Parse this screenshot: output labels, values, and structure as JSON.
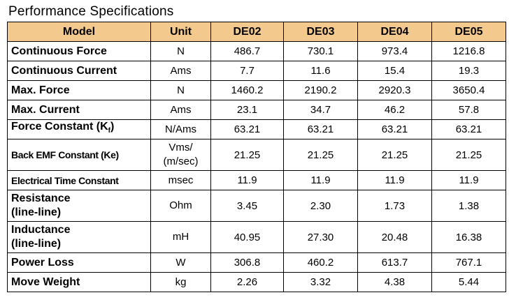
{
  "title": "Performance Specifications",
  "columns": [
    "Model",
    "Unit",
    "DE02",
    "DE03",
    "DE04",
    "DE05"
  ],
  "rows": [
    {
      "param": "Continuous Force",
      "unit": "N",
      "values": [
        "486.7",
        "730.1",
        "973.4",
        "1216.8"
      ]
    },
    {
      "param": "Continuous Current",
      "unit": "Ams",
      "values": [
        "7.7",
        "11.6",
        "15.4",
        "19.3"
      ]
    },
    {
      "param": "Max. Force",
      "unit": "N",
      "values": [
        "1460.2",
        "2190.2",
        "2920.3",
        "3650.4"
      ]
    },
    {
      "param": "Max. Current",
      "unit": "Ams",
      "values": [
        "23.1",
        "34.7",
        "46.2",
        "57.8"
      ]
    },
    {
      "param": "Force Constant (K",
      "param_sub": "f",
      "param_end": ")",
      "unit": "N/Ams",
      "values": [
        "63.21",
        "63.21",
        "63.21",
        "63.21"
      ]
    },
    {
      "param": "Back EMF Constant (Ke)",
      "unit_line1": "Vms/",
      "unit_line2": "(m/sec)",
      "values": [
        "21.25",
        "21.25",
        "21.25",
        "21.25"
      ]
    },
    {
      "param": "Electrical Time Constant",
      "unit": "msec",
      "values": [
        "11.9",
        "11.9",
        "11.9",
        "11.9"
      ]
    },
    {
      "param_line1": "Resistance",
      "param_line2": "(line-line)",
      "unit": "Ohm",
      "values": [
        "3.45",
        "2.30",
        "1.73",
        "1.38"
      ]
    },
    {
      "param_line1": "Inductance",
      "param_line2": "(line-line)",
      "unit": "mH",
      "values": [
        "40.95",
        "27.30",
        "20.48",
        "16.38"
      ]
    },
    {
      "param": "Power Loss",
      "unit": "W",
      "values": [
        "306.8",
        "460.2",
        "613.7",
        "767.1"
      ]
    },
    {
      "param": "Move Weight",
      "unit": "kg",
      "values": [
        "2.26",
        "3.32",
        "4.38",
        "5.44"
      ]
    }
  ]
}
